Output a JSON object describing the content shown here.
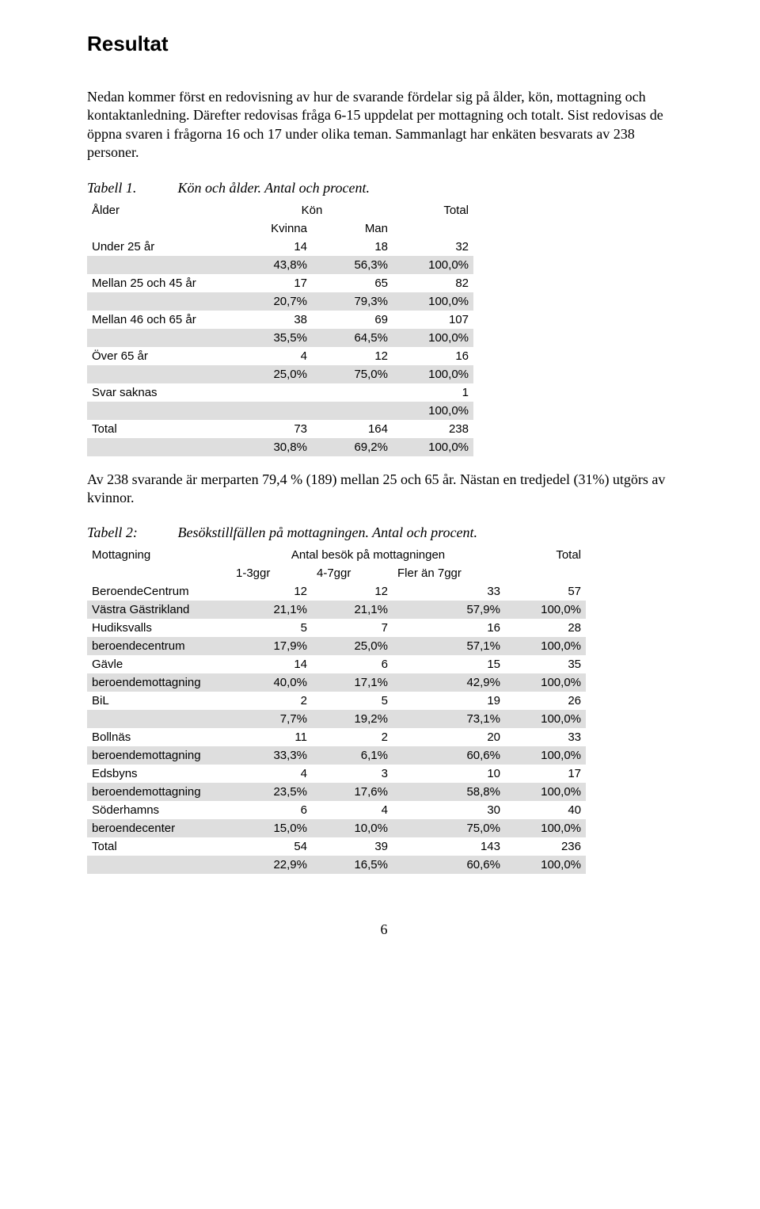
{
  "title": "Resultat",
  "para1": "Nedan kommer först en redovisning av hur de svarande fördelar sig på ålder, kön, mottagning och kontaktanledning. Därefter redovisas fråga 6-15 uppdelat per mottagning och totalt. Sist redovisas de öppna svaren i frågorna 16 och 17 under olika teman. Sammanlagt har enkäten besvarats av 238 personer.",
  "table1": {
    "caption_num": "Tabell 1.",
    "caption_desc": "Kön och ålder. Antal och procent.",
    "head_r1": [
      "Ålder",
      "Kön",
      "Total"
    ],
    "head_r2": [
      "Kvinna",
      "Man"
    ],
    "rows": [
      {
        "label": "Under 25 år",
        "n": [
          "14",
          "18",
          "32"
        ],
        "p": [
          "43,8%",
          "56,3%",
          "100,0%"
        ]
      },
      {
        "label": "Mellan 25 och 45 år",
        "n": [
          "17",
          "65",
          "82"
        ],
        "p": [
          "20,7%",
          "79,3%",
          "100,0%"
        ]
      },
      {
        "label": "Mellan 46 och 65 år",
        "n": [
          "38",
          "69",
          "107"
        ],
        "p": [
          "35,5%",
          "64,5%",
          "100,0%"
        ]
      },
      {
        "label": "Över 65 år",
        "n": [
          "4",
          "12",
          "16"
        ],
        "p": [
          "25,0%",
          "75,0%",
          "100,0%"
        ]
      },
      {
        "label": "Svar saknas",
        "n": [
          "",
          "",
          "1"
        ],
        "p": [
          "",
          "",
          "100,0%"
        ]
      },
      {
        "label": "Total",
        "n": [
          "73",
          "164",
          "238"
        ],
        "p": [
          "30,8%",
          "69,2%",
          "100,0%"
        ]
      }
    ]
  },
  "para2": "Av 238 svarande är merparten 79,4 % (189) mellan 25 och 65 år. Nästan en tredjedel (31%) utgörs av kvinnor.",
  "table2": {
    "caption_num": "Tabell 2:",
    "caption_desc": "Besökstillfällen på mottagningen. Antal och procent.",
    "head_r1": [
      "Mottagning",
      "Antal besök på mottagningen",
      "Total"
    ],
    "head_r2": [
      "1-3ggr",
      "4-7ggr",
      "Fler än 7ggr"
    ],
    "rows": [
      {
        "label1": "BeroendeCentrum",
        "label2": "Västra Gästrikland",
        "n": [
          "12",
          "12",
          "33",
          "57"
        ],
        "p": [
          "21,1%",
          "21,1%",
          "57,9%",
          "100,0%"
        ]
      },
      {
        "label1": "Hudiksvalls",
        "label2": "beroendecentrum",
        "n": [
          "5",
          "7",
          "16",
          "28"
        ],
        "p": [
          "17,9%",
          "25,0%",
          "57,1%",
          "100,0%"
        ]
      },
      {
        "label1": "Gävle",
        "label2": "beroendemottagning",
        "n": [
          "14",
          "6",
          "15",
          "35"
        ],
        "p": [
          "40,0%",
          "17,1%",
          "42,9%",
          "100,0%"
        ]
      },
      {
        "label1": "BiL",
        "label2": "",
        "n": [
          "2",
          "5",
          "19",
          "26"
        ],
        "p": [
          "7,7%",
          "19,2%",
          "73,1%",
          "100,0%"
        ]
      },
      {
        "label1": "Bollnäs",
        "label2": "beroendemottagning",
        "n": [
          "11",
          "2",
          "20",
          "33"
        ],
        "p": [
          "33,3%",
          "6,1%",
          "60,6%",
          "100,0%"
        ]
      },
      {
        "label1": "Edsbyns",
        "label2": "beroendemottagning",
        "n": [
          "4",
          "3",
          "10",
          "17"
        ],
        "p": [
          "23,5%",
          "17,6%",
          "58,8%",
          "100,0%"
        ]
      },
      {
        "label1": "Söderhamns",
        "label2": "beroendecenter",
        "n": [
          "6",
          "4",
          "30",
          "40"
        ],
        "p": [
          "15,0%",
          "10,0%",
          "75,0%",
          "100,0%"
        ]
      },
      {
        "label1": "Total",
        "label2": "",
        "n": [
          "54",
          "39",
          "143",
          "236"
        ],
        "p": [
          "22,9%",
          "16,5%",
          "60,6%",
          "100,0%"
        ]
      }
    ]
  },
  "pagenum": "6"
}
